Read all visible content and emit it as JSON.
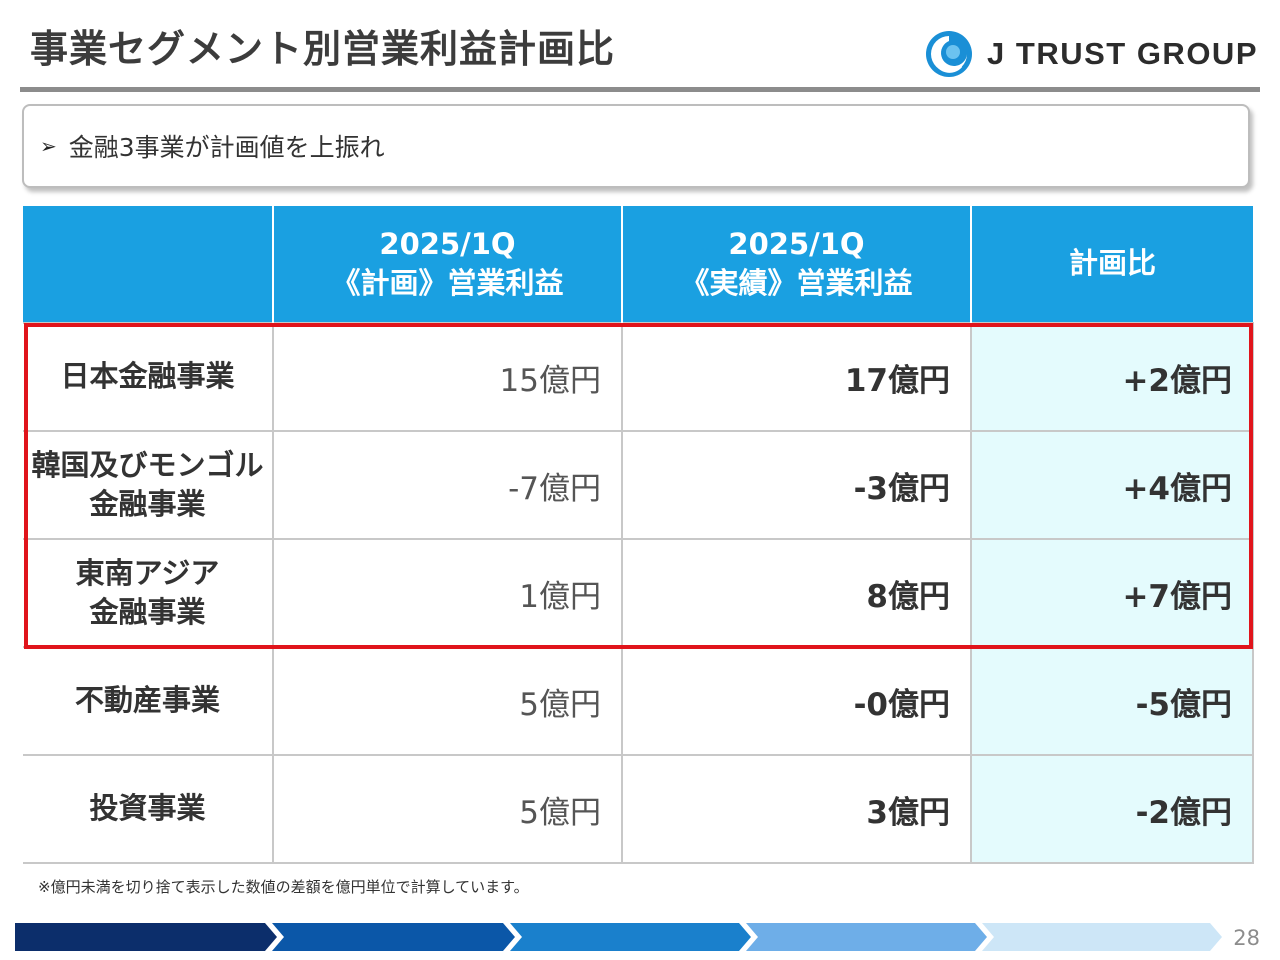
{
  "header": {
    "title": "事業セグメント別営業利益計画比",
    "logo_text": "J TRUST GROUP",
    "logo_icon": "swirl-logo-icon"
  },
  "callout": {
    "bullet": "➢",
    "text": "金融3事業が計画値を上振れ"
  },
  "table": {
    "headers": [
      {
        "line1": "",
        "line2": ""
      },
      {
        "line1": "2025/1Q",
        "line2": "《計画》営業利益"
      },
      {
        "line1": "2025/1Q",
        "line2": "《実績》営業利益"
      },
      {
        "line1": "計画比",
        "line2": ""
      }
    ],
    "rows": [
      {
        "label_line1": "日本金融事業",
        "label_line2": "",
        "plan": "15億円",
        "actual": "17億円",
        "ratio": "+2億円"
      },
      {
        "label_line1": "韓国及びモンゴル",
        "label_line2": "金融事業",
        "plan": "-7億円",
        "actual": "-3億円",
        "ratio": "+4億円"
      },
      {
        "label_line1": "東南アジア",
        "label_line2": "金融事業",
        "plan": "1億円",
        "actual": "8億円",
        "ratio": "+7億円"
      },
      {
        "label_line1": "不動産事業",
        "label_line2": "",
        "plan": "5億円",
        "actual": "-0億円",
        "ratio": "-5億円"
      },
      {
        "label_line1": "投資事業",
        "label_line2": "",
        "plan": "5億円",
        "actual": "3億円",
        "ratio": "-2億円"
      }
    ]
  },
  "footnote": "※億円未満を切り捨て表示した数値の差額を億円単位で計算しています。",
  "page_number": "28",
  "colors": {
    "header_bg": "#1aa0e1",
    "ratio_bg": "#e4fbfd",
    "highlight": "#e0141b",
    "chevron_colors": [
      "#0c2e6b",
      "#0b57a8",
      "#1a80cc",
      "#6eaee8",
      "#cde6f7"
    ]
  }
}
